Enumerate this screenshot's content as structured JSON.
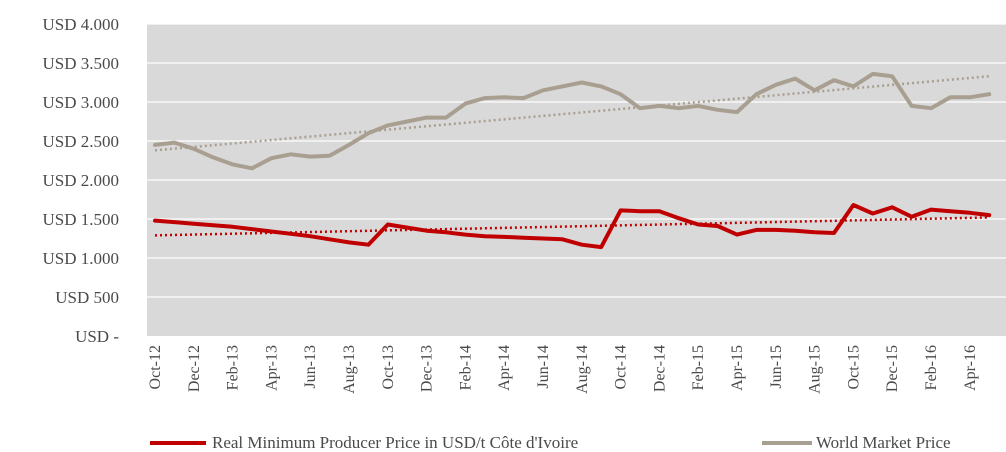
{
  "chart_data": {
    "type": "line",
    "title": "",
    "xlabel": "",
    "ylabel": "",
    "ylim": [
      0,
      4000
    ],
    "y_tick_values": [
      0,
      500,
      1000,
      1500,
      2000,
      2500,
      3000,
      3500,
      4000
    ],
    "y_tick_labels": [
      "USD -",
      "USD 500",
      "USD 1.000",
      "USD 1.500",
      "USD 2.000",
      "USD 2.500",
      "USD 3.000",
      "USD 3.500",
      "USD 4.000"
    ],
    "grid": true,
    "plot_background": "#d9d9d9",
    "gridline_color": "#ffffff",
    "legend_position": "bottom",
    "x": [
      "Oct-12",
      "Nov-12",
      "Dec-12",
      "Jan-13",
      "Feb-13",
      "Mar-13",
      "Apr-13",
      "May-13",
      "Jun-13",
      "Jul-13",
      "Aug-13",
      "Sep-13",
      "Oct-13",
      "Nov-13",
      "Dec-13",
      "Jan-14",
      "Feb-14",
      "Mar-14",
      "Apr-14",
      "May-14",
      "Jun-14",
      "Jul-14",
      "Aug-14",
      "Sep-14",
      "Oct-14",
      "Nov-14",
      "Dec-14",
      "Jan-15",
      "Feb-15",
      "Mar-15",
      "Apr-15",
      "May-15",
      "Jun-15",
      "Jul-15",
      "Aug-15",
      "Sep-15",
      "Oct-15",
      "Nov-15",
      "Dec-15",
      "Jan-16",
      "Feb-16",
      "Mar-16",
      "Apr-16",
      "May-16"
    ],
    "x_tick_labels": [
      "Oct-12",
      "Dec-12",
      "Feb-13",
      "Apr-13",
      "Jun-13",
      "Aug-13",
      "Oct-13",
      "Dec-13",
      "Feb-14",
      "Apr-14",
      "Jun-14",
      "Aug-14",
      "Oct-14",
      "Dec-14",
      "Feb-15",
      "Apr-15",
      "Jun-15",
      "Aug-15",
      "Oct-15",
      "Dec-15",
      "Feb-16",
      "Apr-16"
    ],
    "series": [
      {
        "name": "Real Minimum Producer Price in USD/t Côte d'Ivoire",
        "color": "#c00000",
        "values": [
          1480,
          1460,
          1440,
          1420,
          1400,
          1370,
          1340,
          1310,
          1280,
          1240,
          1200,
          1170,
          1430,
          1390,
          1350,
          1330,
          1300,
          1280,
          1270,
          1260,
          1250,
          1240,
          1170,
          1140,
          1610,
          1600,
          1600,
          1510,
          1430,
          1410,
          1300,
          1360,
          1360,
          1350,
          1330,
          1320,
          1680,
          1570,
          1650,
          1530,
          1620,
          1600,
          1580,
          1550
        ]
      },
      {
        "name": "World Market Price",
        "color": "#a89f91",
        "values": [
          2450,
          2480,
          2400,
          2290,
          2200,
          2150,
          2280,
          2330,
          2300,
          2310,
          2450,
          2600,
          2700,
          2750,
          2800,
          2800,
          2980,
          3050,
          3060,
          3050,
          3150,
          3200,
          3250,
          3200,
          3100,
          2920,
          2950,
          2920,
          2950,
          2900,
          2870,
          3100,
          3220,
          3300,
          3150,
          3280,
          3200,
          3360,
          3330,
          2950,
          2920,
          3060,
          3060,
          3100
        ]
      }
    ],
    "trendlines": [
      {
        "series": 0,
        "start": 1290,
        "end": 1520,
        "style": "dotted",
        "color": "#c00000"
      },
      {
        "series": 1,
        "start": 2380,
        "end": 3330,
        "style": "dotted",
        "color": "#a89f91"
      }
    ]
  }
}
